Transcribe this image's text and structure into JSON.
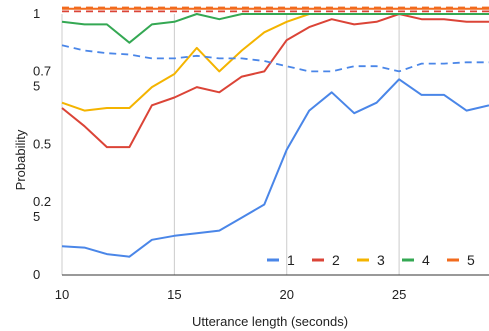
{
  "chart_data": {
    "type": "line",
    "xlabel": "Utterance length (seconds)",
    "ylabel": "Probability",
    "xlim": [
      10,
      29
    ],
    "ylim": [
      0,
      1
    ],
    "x_ticks": [
      10,
      15,
      20,
      25
    ],
    "x_tick_labels": [
      "10",
      "15",
      "20",
      "25"
    ],
    "y_ticks": [
      0,
      0.25,
      0.5,
      0.75,
      1
    ],
    "y_tick_labels": [
      "0",
      "0.2\n5",
      "0.5",
      "0.7\n5",
      "1"
    ],
    "grid": {
      "vertical": true,
      "horizontal": false
    },
    "legend_position": "bottom-right",
    "x": [
      10,
      11,
      12,
      13,
      14,
      15,
      16,
      17,
      18,
      19,
      20,
      21,
      22,
      23,
      24,
      25,
      26,
      27,
      28,
      29
    ],
    "series": [
      {
        "name": "1",
        "color": "#4a86e8",
        "style": "solid",
        "values": [
          0.11,
          0.105,
          0.08,
          0.07,
          0.135,
          0.15,
          0.16,
          0.17,
          0.22,
          0.27,
          0.48,
          0.63,
          0.7,
          0.62,
          0.66,
          0.75,
          0.69,
          0.69,
          0.63,
          0.65
        ]
      },
      {
        "name": "2",
        "color": "#db4437",
        "style": "solid",
        "values": [
          0.64,
          0.57,
          0.49,
          0.49,
          0.65,
          0.68,
          0.72,
          0.7,
          0.76,
          0.78,
          0.9,
          0.95,
          0.98,
          0.96,
          0.97,
          1.0,
          0.98,
          0.98,
          0.97,
          0.97
        ]
      },
      {
        "name": "3",
        "color": "#f4b400",
        "style": "solid",
        "values": [
          0.66,
          0.63,
          0.64,
          0.64,
          0.72,
          0.77,
          0.87,
          0.78,
          0.86,
          0.93,
          0.97,
          1.0,
          1.0,
          1.0,
          1.0,
          1.0,
          1.0,
          1.0,
          1.0,
          1.0
        ]
      },
      {
        "name": "4",
        "color": "#34a853",
        "style": "solid",
        "values": [
          0.97,
          0.96,
          0.96,
          0.89,
          0.96,
          0.97,
          1.0,
          0.98,
          1.0,
          1.0,
          1.0,
          1.0,
          1.0,
          1.0,
          1.0,
          1.0,
          1.0,
          1.0,
          1.0,
          1.0
        ]
      },
      {
        "name": "5",
        "color": "#f26b1d",
        "style": "solid",
        "values": [
          1.02,
          1.02,
          1.02,
          1.02,
          1.02,
          1.02,
          1.02,
          1.02,
          1.02,
          1.02,
          1.02,
          1.02,
          1.02,
          1.02,
          1.02,
          1.02,
          1.02,
          1.02,
          1.02,
          1.02
        ]
      },
      {
        "name": "",
        "color": "#4a86e8",
        "style": "dashed",
        "values": [
          0.88,
          0.86,
          0.85,
          0.845,
          0.83,
          0.83,
          0.84,
          0.83,
          0.83,
          0.82,
          0.8,
          0.78,
          0.78,
          0.8,
          0.8,
          0.78,
          0.81,
          0.81,
          0.815,
          0.815
        ]
      },
      {
        "name": "",
        "color": "#db4437",
        "style": "dashed",
        "values": [
          1.01,
          1.01,
          1.01,
          1.01,
          1.01,
          1.01,
          1.01,
          1.01,
          1.01,
          1.01,
          1.01,
          1.01,
          1.01,
          1.01,
          1.01,
          1.01,
          1.01,
          1.01,
          1.01,
          1.01
        ]
      },
      {
        "name": "",
        "color": "#f26b1d",
        "style": "dashed",
        "values": [
          1.025,
          1.025,
          1.025,
          1.025,
          1.025,
          1.025,
          1.025,
          1.025,
          1.025,
          1.025,
          1.025,
          1.025,
          1.025,
          1.025,
          1.025,
          1.025,
          1.025,
          1.025,
          1.025,
          1.025
        ]
      }
    ]
  }
}
